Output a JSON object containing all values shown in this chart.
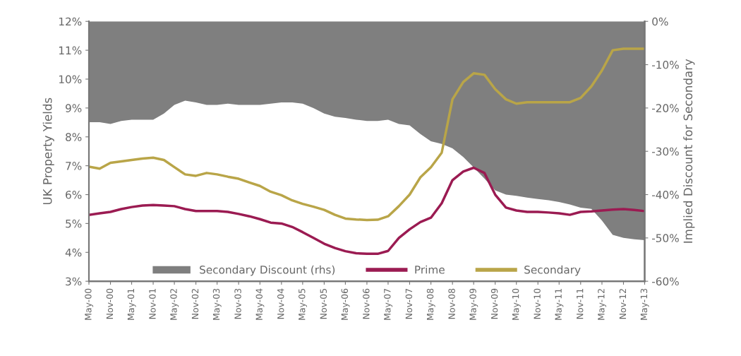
{
  "chart_data": {
    "type": "line",
    "ylabel": "UK Property Yields",
    "y2label": "Implied Discount for Secondary",
    "x": [
      "2000-05",
      "2000-08",
      "2000-11",
      "2001-02",
      "2001-05",
      "2001-08",
      "2001-11",
      "2002-02",
      "2002-05",
      "2002-08",
      "2002-11",
      "2003-02",
      "2003-05",
      "2003-08",
      "2003-11",
      "2004-02",
      "2004-05",
      "2004-08",
      "2004-11",
      "2005-02",
      "2005-05",
      "2005-08",
      "2005-11",
      "2006-02",
      "2006-05",
      "2006-08",
      "2006-11",
      "2007-02",
      "2007-05",
      "2007-08",
      "2007-11",
      "2008-02",
      "2008-05",
      "2008-08",
      "2008-11",
      "2009-02",
      "2009-05",
      "2009-08",
      "2009-11",
      "2010-02",
      "2010-05",
      "2010-08",
      "2010-11",
      "2011-02",
      "2011-05",
      "2011-08",
      "2011-11",
      "2012-02",
      "2012-05",
      "2012-08",
      "2012-11",
      "2013-02",
      "2013-05"
    ],
    "series": [
      {
        "name": "Secondary Discount (rhs)",
        "type": "area",
        "axis": "y2",
        "color": "#7f7f7f",
        "values": [
          -23.3,
          -23.3,
          -23.7,
          -23.0,
          -22.7,
          -22.7,
          -22.7,
          -21.3,
          -19.3,
          -18.3,
          -18.7,
          -19.3,
          -19.3,
          -19.0,
          -19.3,
          -19.3,
          -19.3,
          -19.0,
          -18.7,
          -18.7,
          -19.0,
          -20.0,
          -21.3,
          -22.0,
          -22.3,
          -22.7,
          -23.0,
          -23.0,
          -22.7,
          -23.7,
          -24.0,
          -26.0,
          -27.7,
          -28.3,
          -29.3,
          -31.3,
          -33.7,
          -36.3,
          -39.0,
          -40.0,
          -40.3,
          -40.7,
          -41.0,
          -41.3,
          -41.7,
          -42.3,
          -43.0,
          -43.3,
          -46.0,
          -49.3,
          -50.0,
          -50.3,
          -50.5
        ]
      },
      {
        "name": "Prime",
        "color": "#9b1b52",
        "values": [
          5.3,
          5.35,
          5.4,
          5.5,
          5.57,
          5.62,
          5.64,
          5.62,
          5.6,
          5.5,
          5.43,
          5.43,
          5.43,
          5.4,
          5.33,
          5.25,
          5.15,
          5.03,
          5.0,
          4.88,
          4.7,
          4.5,
          4.3,
          4.15,
          4.04,
          3.97,
          3.95,
          3.95,
          4.05,
          4.5,
          4.8,
          5.05,
          5.2,
          5.7,
          6.5,
          6.8,
          6.93,
          6.75,
          6.0,
          5.55,
          5.45,
          5.4,
          5.4,
          5.38,
          5.35,
          5.3,
          5.4,
          5.42,
          5.45,
          5.48,
          5.5,
          5.47,
          5.43
        ]
      },
      {
        "name": "Secondary",
        "color": "#b9a548",
        "values": [
          6.97,
          6.9,
          7.1,
          7.15,
          7.2,
          7.25,
          7.28,
          7.2,
          6.95,
          6.7,
          6.65,
          6.75,
          6.7,
          6.62,
          6.55,
          6.42,
          6.3,
          6.1,
          5.98,
          5.8,
          5.68,
          5.58,
          5.47,
          5.3,
          5.17,
          5.14,
          5.12,
          5.13,
          5.25,
          5.6,
          6.0,
          6.6,
          6.95,
          7.45,
          9.3,
          9.9,
          10.2,
          10.15,
          9.65,
          9.3,
          9.15,
          9.2,
          9.2,
          9.2,
          9.2,
          9.2,
          9.35,
          9.75,
          10.3,
          11.0,
          11.05,
          11.05,
          11.05
        ]
      }
    ],
    "xlim": [
      "2000-05",
      "2013-05"
    ],
    "xticks": [
      {
        "value": "2000-05",
        "label": "May-00"
      },
      {
        "value": "2000-11",
        "label": "Nov-00"
      },
      {
        "value": "2001-05",
        "label": "May-01"
      },
      {
        "value": "2001-11",
        "label": "Nov-01"
      },
      {
        "value": "2002-05",
        "label": "May-02"
      },
      {
        "value": "2002-11",
        "label": "Nov-02"
      },
      {
        "value": "2003-05",
        "label": "May-03"
      },
      {
        "value": "2003-11",
        "label": "Nov-03"
      },
      {
        "value": "2004-05",
        "label": "May-04"
      },
      {
        "value": "2004-11",
        "label": "Nov-04"
      },
      {
        "value": "2005-05",
        "label": "May-05"
      },
      {
        "value": "2005-11",
        "label": "Nov-05"
      },
      {
        "value": "2006-05",
        "label": "May-06"
      },
      {
        "value": "2006-11",
        "label": "Nov-06"
      },
      {
        "value": "2007-05",
        "label": "May-07"
      },
      {
        "value": "2007-11",
        "label": "Nov-07"
      },
      {
        "value": "2008-05",
        "label": "May-08"
      },
      {
        "value": "2008-11",
        "label": "Nov-08"
      },
      {
        "value": "2009-05",
        "label": "May-09"
      },
      {
        "value": "2009-11",
        "label": "Nov-09"
      },
      {
        "value": "2010-05",
        "label": "May-10"
      },
      {
        "value": "2010-11",
        "label": "Nov-10"
      },
      {
        "value": "2011-05",
        "label": "May-11"
      },
      {
        "value": "2011-11",
        "label": "Nov-11"
      },
      {
        "value": "2012-05",
        "label": "May-12"
      },
      {
        "value": "2012-11",
        "label": "Nov-12"
      },
      {
        "value": "2013-05",
        "label": "May-13"
      }
    ],
    "ylim": [
      3,
      12
    ],
    "yticks": [
      {
        "value": 3,
        "label": "3%"
      },
      {
        "value": 4,
        "label": "4%"
      },
      {
        "value": 5,
        "label": "5%"
      },
      {
        "value": 6,
        "label": "6%"
      },
      {
        "value": 7,
        "label": "7%"
      },
      {
        "value": 8,
        "label": "8%"
      },
      {
        "value": 9,
        "label": "9%"
      },
      {
        "value": 10,
        "label": "10%"
      },
      {
        "value": 11,
        "label": "11%"
      },
      {
        "value": 12,
        "label": "12%"
      }
    ],
    "y2lim": [
      -60,
      0
    ],
    "y2ticks": [
      {
        "value": -60,
        "label": "-60%"
      },
      {
        "value": -50,
        "label": "-50%"
      },
      {
        "value": -40,
        "label": "-40%"
      },
      {
        "value": -30,
        "label": "-30%"
      },
      {
        "value": -20,
        "label": "-20%"
      },
      {
        "value": -10,
        "label": "-10%"
      },
      {
        "value": 0,
        "label": "0%"
      }
    ],
    "legend": "bottom",
    "grid": false
  }
}
